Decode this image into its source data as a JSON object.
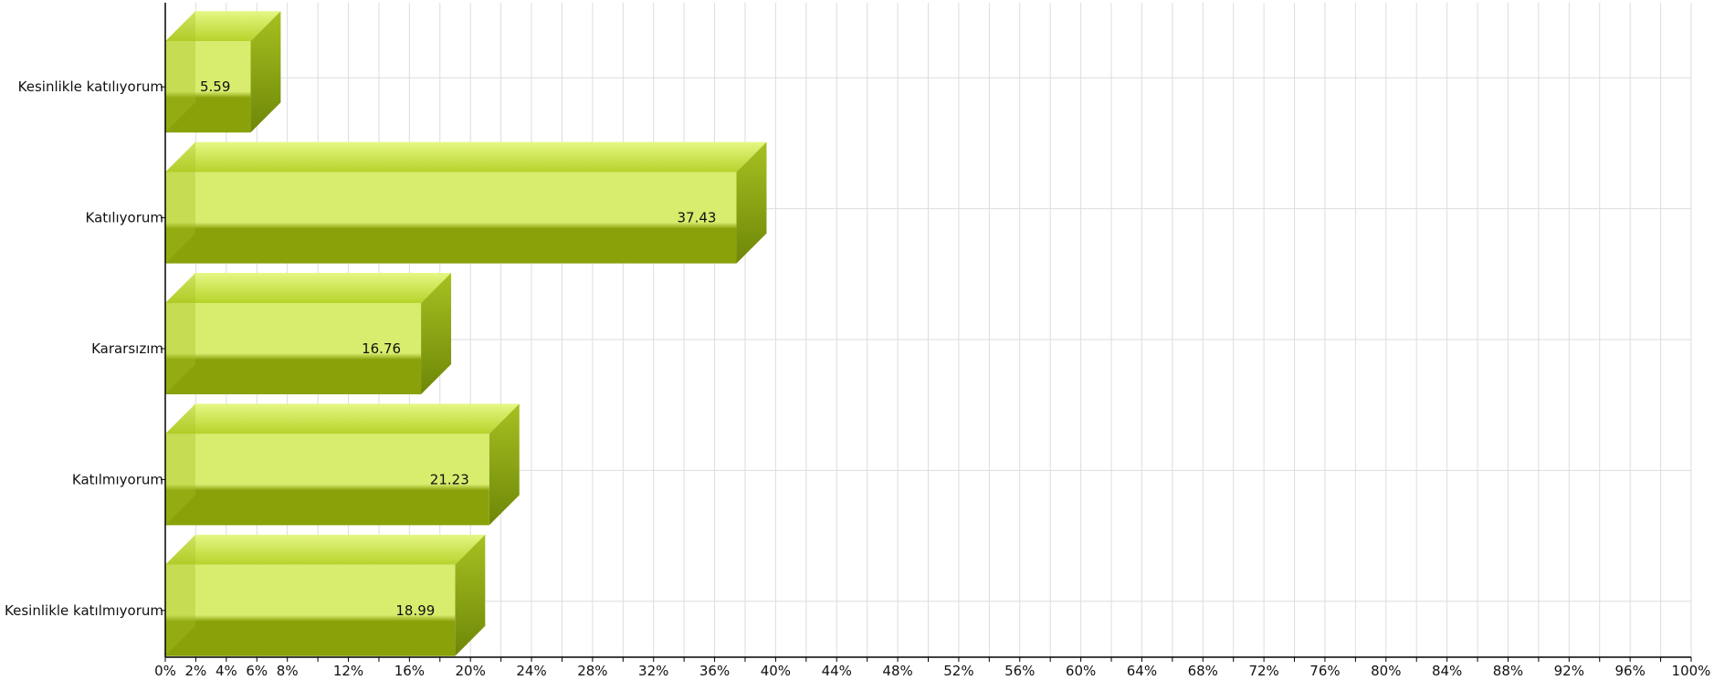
{
  "chart_data": {
    "type": "bar",
    "orientation": "horizontal",
    "style": "3d",
    "categories": [
      "Kesinlikle katılıyorum",
      "Katılıyorum",
      "Kararsızım",
      "Katılmıyorum",
      "Kesinlikle katılmıyorum"
    ],
    "values": [
      5.59,
      37.43,
      16.76,
      21.23,
      18.99
    ],
    "value_labels": [
      "5.59",
      "37.43",
      "16.76",
      "21.23",
      "18.99"
    ],
    "xlim": [
      0,
      100
    ],
    "x_ticks": [
      "0%",
      "2%",
      "4%",
      "6%",
      "8%",
      "12%",
      "16%",
      "20%",
      "24%",
      "28%",
      "32%",
      "36%",
      "40%",
      "44%",
      "48%",
      "52%",
      "56%",
      "60%",
      "64%",
      "68%",
      "72%",
      "76%",
      "80%",
      "84%",
      "88%",
      "92%",
      "96%",
      "100%"
    ],
    "grid": true,
    "title": "",
    "xlabel": "",
    "ylabel": "",
    "colors": {
      "front_light": "#d8ec6e",
      "front_dark": "#8aa10a",
      "top_light": "#e6f784",
      "top_dark": "#b6d32a",
      "side_light": "#a6c121",
      "side_dark": "#6e8708",
      "grid": "#dddddd",
      "axis": "#000000"
    }
  }
}
